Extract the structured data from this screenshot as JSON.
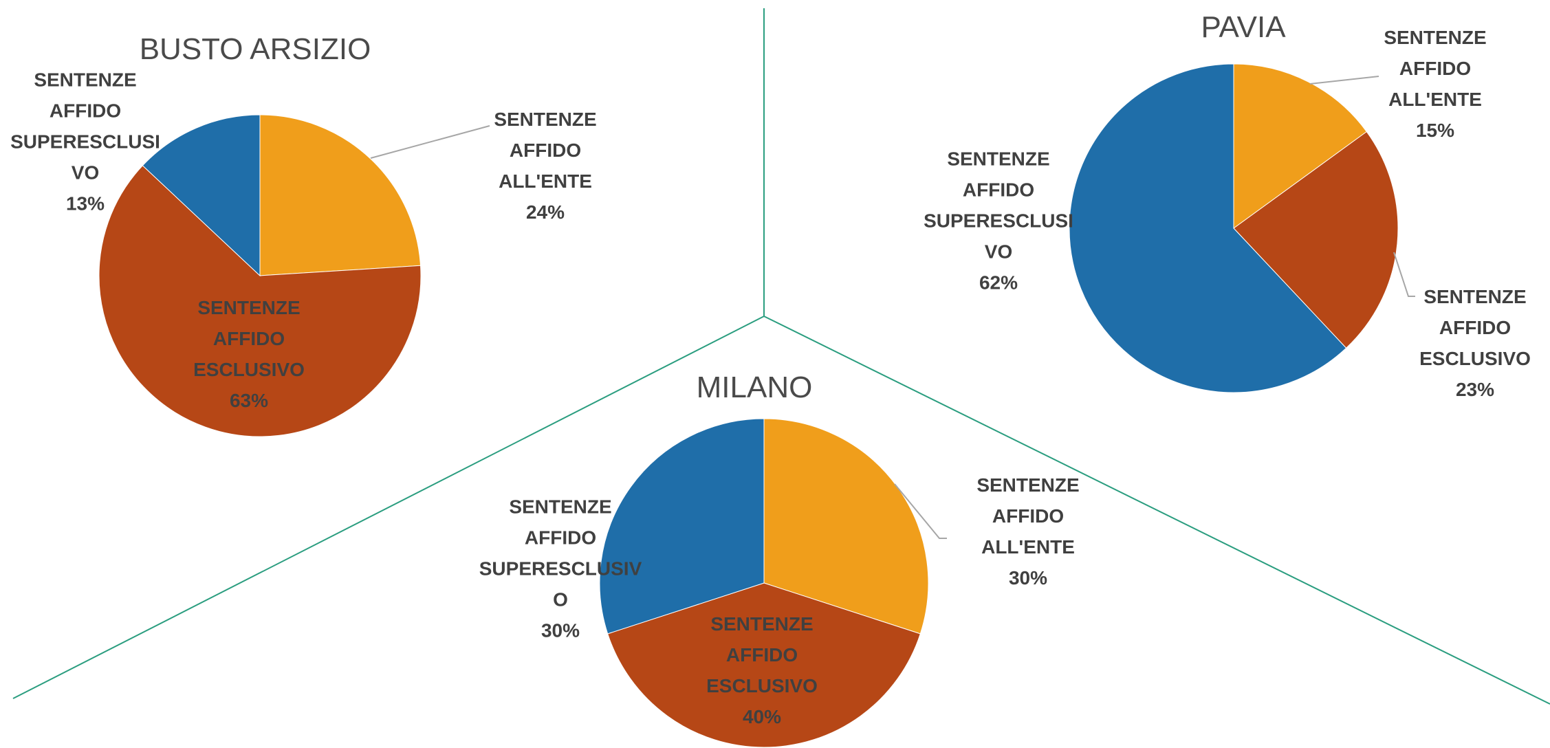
{
  "chart_data": [
    {
      "type": "pie",
      "title": "BUSTO ARSIZIO",
      "categories": [
        "SENTENZE AFFIDO ALL'ENTE",
        "SENTENZE AFFIDO ESCLUSIVO",
        "SENTENZE AFFIDO SUPERESCLUSIVO"
      ],
      "values": [
        24,
        63,
        13
      ],
      "value_labels": [
        "24%",
        "63%",
        "13%"
      ],
      "colors": [
        "#f09e1b",
        "#b64716",
        "#1f6ea9"
      ]
    },
    {
      "type": "pie",
      "title": "PAVIA",
      "categories": [
        "SENTENZE AFFIDO ALL'ENTE",
        "SENTENZE AFFIDO ESCLUSIVO",
        "SENTENZE AFFIDO SUPERESCLUSIVO"
      ],
      "values": [
        15,
        23,
        62
      ],
      "value_labels": [
        "15%",
        "23%",
        "62%"
      ],
      "colors": [
        "#f09e1b",
        "#b64716",
        "#1f6ea9"
      ]
    },
    {
      "type": "pie",
      "title": "MILANO",
      "categories": [
        "SENTENZE AFFIDO ALL'ENTE",
        "SENTENZE AFFIDO ESCLUSIVO",
        "SENTENZE AFFIDO SUPERESCLUSIVO"
      ],
      "values": [
        30,
        40,
        30
      ],
      "value_labels": [
        "30%",
        "40%",
        "30%"
      ],
      "colors": [
        "#f09e1b",
        "#b64716",
        "#1f6ea9"
      ]
    }
  ]
}
